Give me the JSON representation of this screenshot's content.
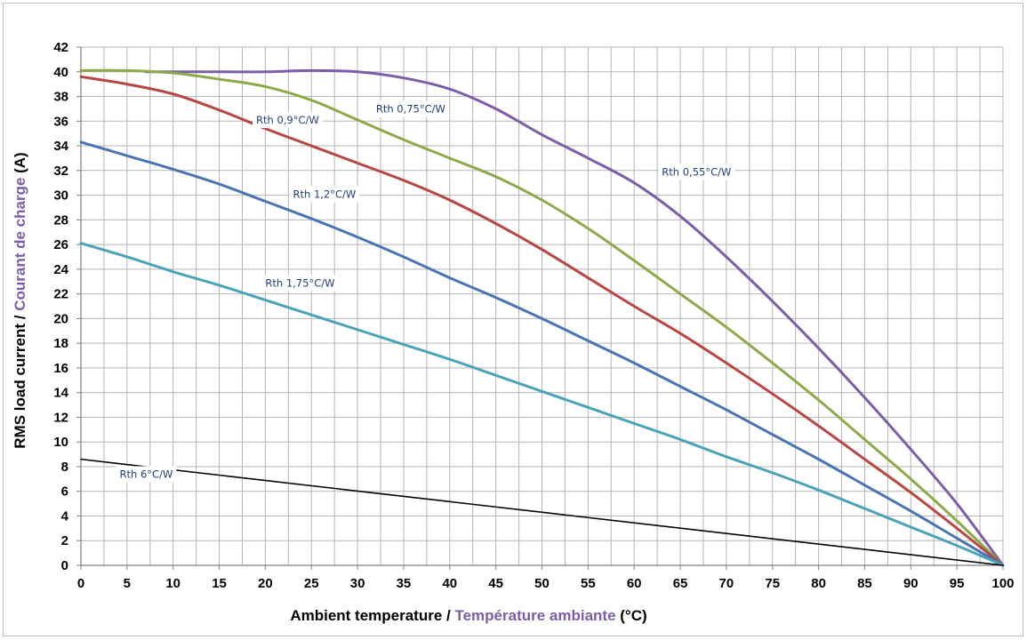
{
  "chart_data": {
    "type": "line",
    "xlabel_en": "Ambient temperature / ",
    "xlabel_fr": "Température ambiante",
    "xlabel_unit": " (°C)",
    "ylabel_en": "RMS load current / ",
    "ylabel_fr": "Courant de charge",
    "ylabel_unit": " (A)",
    "xlim": [
      0,
      100
    ],
    "ylim": [
      0,
      42
    ],
    "x_ticks": [
      0,
      5,
      10,
      15,
      20,
      25,
      30,
      35,
      40,
      45,
      50,
      55,
      60,
      65,
      70,
      75,
      80,
      85,
      90,
      95,
      100
    ],
    "y_ticks": [
      0,
      2,
      4,
      6,
      8,
      10,
      12,
      14,
      16,
      18,
      20,
      22,
      24,
      26,
      28,
      30,
      32,
      34,
      36,
      38,
      40,
      42
    ],
    "grid": true,
    "title_color_fr": "#7b5ea7",
    "series": [
      {
        "name": "Rth 0,55°C/W",
        "color": "#7b5ea7",
        "label_x": 63,
        "label_y": 31.6,
        "x": [
          7,
          15,
          20,
          25,
          30,
          35,
          40,
          45,
          50,
          55,
          60,
          65,
          70,
          75,
          80,
          85,
          90,
          95,
          100
        ],
        "y": [
          40.0,
          40.0,
          40.0,
          40.1,
          40.0,
          39.5,
          38.6,
          37.0,
          34.9,
          33.0,
          31.0,
          28.3,
          25.0,
          21.4,
          17.6,
          13.6,
          9.4,
          5.0,
          0.0
        ]
      },
      {
        "name": "Rth 0,75°C/W",
        "color": "#8daa4a",
        "label_x": 32,
        "label_y": 36.7,
        "x": [
          0,
          5,
          10,
          15,
          20,
          25,
          30,
          35,
          40,
          45,
          50,
          55,
          60,
          65,
          70,
          75,
          80,
          85,
          90,
          95,
          100
        ],
        "y": [
          40.1,
          40.1,
          39.9,
          39.4,
          38.8,
          37.7,
          36.1,
          34.5,
          33.0,
          31.5,
          29.6,
          27.3,
          24.7,
          22.0,
          19.3,
          16.4,
          13.4,
          10.2,
          7.0,
          3.6,
          0.0
        ]
      },
      {
        "name": "Rth 0,9°C/W",
        "color": "#b84642",
        "label_x": 19,
        "label_y": 35.8,
        "x": [
          0,
          5,
          10,
          15,
          20,
          25,
          30,
          35,
          40,
          45,
          50,
          55,
          60,
          65,
          70,
          75,
          80,
          85,
          90,
          95,
          100
        ],
        "y": [
          39.6,
          39.0,
          38.2,
          36.9,
          35.4,
          34.0,
          32.6,
          31.2,
          29.6,
          27.7,
          25.6,
          23.3,
          21.0,
          18.8,
          16.4,
          13.9,
          11.3,
          8.6,
          5.9,
          3.0,
          0.0
        ]
      },
      {
        "name": "Rth 1,2°C/W",
        "color": "#4a74b4",
        "label_x": 23,
        "label_y": 29.8,
        "x": [
          0,
          5,
          10,
          15,
          20,
          25,
          30,
          35,
          40,
          45,
          50,
          55,
          60,
          65,
          70,
          75,
          80,
          85,
          90,
          95,
          100
        ],
        "y": [
          34.3,
          33.2,
          32.1,
          30.9,
          29.5,
          28.1,
          26.6,
          25.0,
          23.3,
          21.7,
          20.0,
          18.2,
          16.4,
          14.5,
          12.6,
          10.6,
          8.6,
          6.5,
          4.4,
          2.2,
          0.0
        ]
      },
      {
        "name": "Rth 1,75°C/W",
        "color": "#4aa3b8",
        "label_x": 20,
        "label_y": 22.6,
        "x": [
          0,
          5,
          10,
          15,
          20,
          25,
          30,
          35,
          40,
          45,
          50,
          55,
          60,
          65,
          70,
          75,
          80,
          85,
          90,
          95,
          100
        ],
        "y": [
          26.1,
          25.0,
          23.8,
          22.7,
          21.5,
          20.3,
          19.1,
          17.9,
          16.7,
          15.4,
          14.1,
          12.8,
          11.5,
          10.2,
          8.8,
          7.5,
          6.1,
          4.6,
          3.1,
          1.6,
          0.0
        ]
      },
      {
        "name": "Rth 6°C/W",
        "color": "#000000",
        "label_x": 4.2,
        "label_y": 7.1,
        "x": [
          0,
          100
        ],
        "y": [
          8.6,
          0.0
        ]
      }
    ]
  }
}
